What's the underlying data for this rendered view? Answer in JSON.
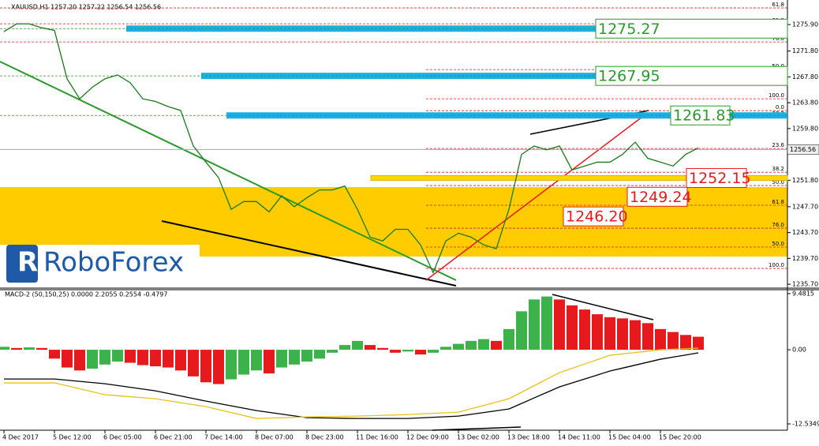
{
  "logo": "RoboForex",
  "chart_data": [
    {
      "type": "line",
      "title": "XAUUSD,H1  1257.20 1257.22 1256.54 1256.56",
      "categories": [
        "4 Dec 2017",
        null,
        null,
        null,
        "5 Dec 12:00",
        null,
        null,
        null,
        "6 Dec 05:00",
        null,
        null,
        null,
        "6 Dec 21:00",
        null,
        null,
        null,
        "7 Dec 14:00",
        null,
        null,
        null,
        "8 Dec 07:00",
        null,
        null,
        null,
        "8 Dec 23:00",
        null,
        null,
        null,
        "11 Dec 16:00",
        null,
        null,
        null,
        "12 Dec 09:00",
        null,
        null,
        null,
        "13 Dec 02:00",
        null,
        null,
        null,
        "13 Dec 18:00",
        null,
        null,
        null,
        "14 Dec 11:00",
        null,
        null,
        null,
        "15 Dec 04:00",
        null,
        null,
        null,
        "15 Dec 20:00",
        null,
        null,
        null
      ],
      "series": [
        {
          "name": "XAUUSD",
          "color": "#1a7a1a",
          "values": [
            1274.8,
            1276.0,
            1276.0,
            1275.4,
            1275.0,
            1267.5,
            1264.4,
            1266.2,
            1267.5,
            1268.1,
            1266.9,
            1264.4,
            1264.0,
            1263.2,
            1262.6,
            1257.1,
            1254.6,
            1252.2,
            1247.3,
            1248.5,
            1248.5,
            1246.9,
            1249.4,
            1247.7,
            1249.1,
            1250.3,
            1250.3,
            1250.9,
            1247.3,
            1243.0,
            1242.4,
            1244.2,
            1244.2,
            1241.8,
            1237.5,
            1242.4,
            1243.6,
            1243.0,
            1241.8,
            1241.2,
            1247.3,
            1255.8,
            1257.1,
            1256.5,
            1257.1,
            1253.4,
            1254.0,
            1254.6,
            1254.6,
            1255.8,
            1257.7,
            1255.2,
            1254.6,
            1254.0,
            1255.8,
            1256.8
          ]
        }
      ],
      "last": 1256.56,
      "ylim": [
        1235.1,
        1279.7
      ],
      "yticks": [
        {
          "value": 1275.9,
          "label": "1275.90"
        },
        {
          "value": 1271.8,
          "label": "1271.80"
        },
        {
          "value": 1267.8,
          "label": "1267.80"
        },
        {
          "value": 1263.8,
          "label": "1263.80"
        },
        {
          "value": 1259.8,
          "label": "1259.80"
        },
        {
          "value": 1251.8,
          "label": "1251.80"
        },
        {
          "value": 1247.7,
          "label": "1247.70"
        },
        {
          "value": 1243.7,
          "label": "1243.70"
        },
        {
          "value": 1239.7,
          "label": "1239.70"
        },
        {
          "value": 1235.7,
          "label": "1235.70"
        }
      ],
      "fib_levels": [
        {
          "value": 1278.47,
          "label": "61.8"
        },
        {
          "value": 1276.02,
          "label": "61.8"
        },
        {
          "value": 1273.21,
          "label": "76.0"
        },
        {
          "value": 1268.93,
          "label": "50.0"
        },
        {
          "value": 1264.41,
          "label": "100.0"
        },
        {
          "value": 1262.57,
          "label": "0.0"
        },
        {
          "value": 1261.6,
          "label": "38.2"
        },
        {
          "value": 1256.71,
          "label": "23.6"
        },
        {
          "value": 1253.04,
          "label": "38.2"
        },
        {
          "value": 1250.98,
          "label": "50.0"
        },
        {
          "value": 1247.93,
          "label": "61.8"
        },
        {
          "value": 1244.38,
          "label": "76.0"
        },
        {
          "value": 1241.45,
          "label": "50.0"
        },
        {
          "value": 1238.15,
          "label": "100.0"
        }
      ],
      "resistance": [
        1275.27,
        1267.95,
        1261.83
      ],
      "support": [
        1252.15,
        1249.24,
        {
          "value": 1246.2,
          "label": "1246.20"
        }
      ]
    },
    {
      "type": "bar",
      "title": "MACD-2 (50,150,25) 0.0000 2.2055 0.2554 -0.4797",
      "up_color": "#3cb34a",
      "down_color": "#e8191c",
      "values": [
        0.5,
        0.3,
        0.4,
        0.3,
        -1.5,
        -3.0,
        -3.5,
        -3.2,
        -2.5,
        -2.0,
        -2.2,
        -2.6,
        -2.8,
        -3.0,
        -3.5,
        -4.5,
        -5.5,
        -5.8,
        -5.0,
        -4.2,
        -3.5,
        -4.0,
        -3.0,
        -2.5,
        -2.0,
        -1.5,
        -0.5,
        0.8,
        1.5,
        0.8,
        0.3,
        -0.5,
        -0.3,
        -0.8,
        -0.5,
        0.5,
        1.0,
        1.5,
        1.8,
        1.5,
        3.5,
        6.5,
        8.5,
        9.0,
        8.5,
        7.5,
        6.8,
        6.0,
        5.5,
        5.3,
        5.0,
        4.5,
        3.5,
        3.0,
        2.5,
        2.2
      ],
      "series": [
        {
          "name": "MACD",
          "color": "#000000",
          "values": [
            -4.94,
            -4.94,
            -4.94,
            -4.94,
            -4.94,
            -5.14,
            -5.34,
            -5.54,
            -5.74,
            -6.04,
            -6.34,
            -6.64,
            -6.94,
            -7.38,
            -7.81,
            -8.25,
            -8.68,
            -9.08,
            -9.48,
            -9.88,
            -10.28,
            -10.58,
            -10.88,
            -11.18,
            -11.48,
            -11.52,
            -11.55,
            -11.59,
            -11.62,
            -11.62,
            -11.62,
            -11.62,
            -11.62,
            -11.52,
            -11.42,
            -11.31,
            -11.21,
            -10.91,
            -10.61,
            -10.31,
            -10.01,
            -9.08,
            -8.14,
            -7.21,
            -6.28,
            -5.61,
            -4.94,
            -4.27,
            -3.6,
            -3.1,
            -2.6,
            -2.1,
            -1.6,
            -1.24,
            -0.89,
            -0.53
          ]
        },
        {
          "name": "Signal",
          "color": "#e8c21a",
          "values": [
            -5.6,
            -5.6,
            -5.6,
            -5.6,
            -5.6,
            -6.1,
            -6.6,
            -7.1,
            -7.6,
            -7.77,
            -7.94,
            -8.11,
            -8.28,
            -8.61,
            -8.95,
            -9.28,
            -9.61,
            -10.11,
            -10.62,
            -11.12,
            -11.62,
            -11.55,
            -11.49,
            -11.42,
            -11.35,
            -11.32,
            -11.28,
            -11.25,
            -11.21,
            -11.15,
            -11.08,
            -11.02,
            -10.95,
            -10.85,
            -10.75,
            -10.65,
            -10.55,
            -9.98,
            -9.42,
            -8.85,
            -8.28,
            -7.18,
            -6.08,
            -4.97,
            -3.87,
            -3.14,
            -2.4,
            -1.67,
            -0.93,
            -0.7,
            -0.47,
            -0.23,
            0,
            0.09,
            0.18,
            0.27
          ]
        }
      ],
      "ylim": [
        -13.6,
        10.15
      ],
      "yticks": [
        9.4815,
        {
          "value": 0,
          "label": "0.00"
        },
        -12.5349
      ]
    }
  ]
}
